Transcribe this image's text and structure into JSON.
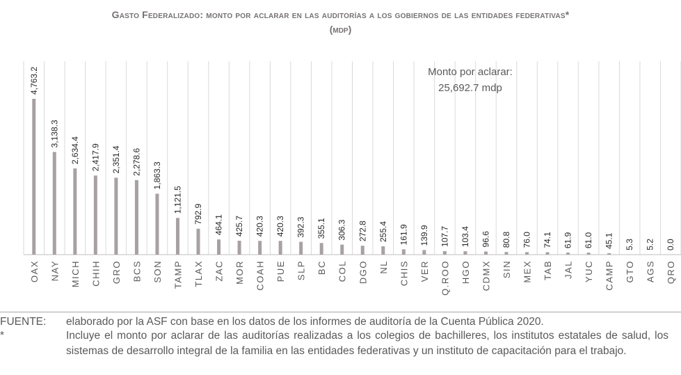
{
  "title": "Gasto Federalizado: monto por aclarar en las auditorías a los gobiernos de las entidades federativas*",
  "subtitle": "(mdp)",
  "annotation": {
    "line1": "Monto por aclarar:",
    "line2": "25,692.7 mdp"
  },
  "footnotes": {
    "source_label": "FUENTE:",
    "source_text": "elaborado por la ASF con base en los datos de los informes de auditoría de la Cuenta Pública 2020.",
    "star_label": "*",
    "star_text": "Incluye el monto por aclarar de las auditorías realizadas a los colegios de bachilleres, los institutos estatales de salud, los sistemas de desarrollo integral de la familia en las entidades federativas y un instituto de capacitación para el trabajo."
  },
  "colors": {
    "bar": "#a8a1a1",
    "text": "#595959",
    "grid": "#d9d9d9"
  },
  "chart_data": {
    "type": "bar",
    "title": "Gasto Federalizado: monto por aclarar en las auditorías a los gobiernos de las entidades federativas*",
    "subtitle": "(mdp)",
    "categories": [
      "OAX",
      "NAY",
      "MICH",
      "CHIH",
      "GRO",
      "BCS",
      "SON",
      "TAMP",
      "TLAX",
      "ZAC",
      "MOR",
      "COAH",
      "PUE",
      "SLP",
      "BC",
      "COL",
      "DGO",
      "NL",
      "CHIS",
      "VER",
      "Q.ROO",
      "HGO",
      "CDMX",
      "SIN",
      "MEX",
      "TAB",
      "JAL",
      "YUC",
      "CAMP",
      "GTO",
      "AGS",
      "QRO"
    ],
    "values": [
      4763.2,
      3138.3,
      2634.4,
      2417.9,
      2351.4,
      2278.6,
      1863.3,
      1121.5,
      792.9,
      464.1,
      425.7,
      420.3,
      420.3,
      392.3,
      355.1,
      306.3,
      272.8,
      255.4,
      161.9,
      139.9,
      107.7,
      103.4,
      96.6,
      80.8,
      76.0,
      74.1,
      61.9,
      61.0,
      45.1,
      5.3,
      5.2,
      0.0
    ],
    "value_labels": [
      "4,763.2",
      "3,138.3",
      "2,634.4",
      "2,417.9",
      "2,351.4",
      "2,278.6",
      "1,863.3",
      "1,121.5",
      "792.9",
      "464.1",
      "425.7",
      "420.3",
      "420.3",
      "392.3",
      "355.1",
      "306.3",
      "272.8",
      "255.4",
      "161.9",
      "139.9",
      "107.7",
      "103.4",
      "96.6",
      "80.8",
      "76.0",
      "74.1",
      "61.9",
      "61.0",
      "45.1",
      "5.3",
      "5.2",
      "0.0"
    ],
    "ylim": [
      0,
      4763.2
    ],
    "grid": "vertical",
    "xlabel": "",
    "ylabel": ""
  }
}
